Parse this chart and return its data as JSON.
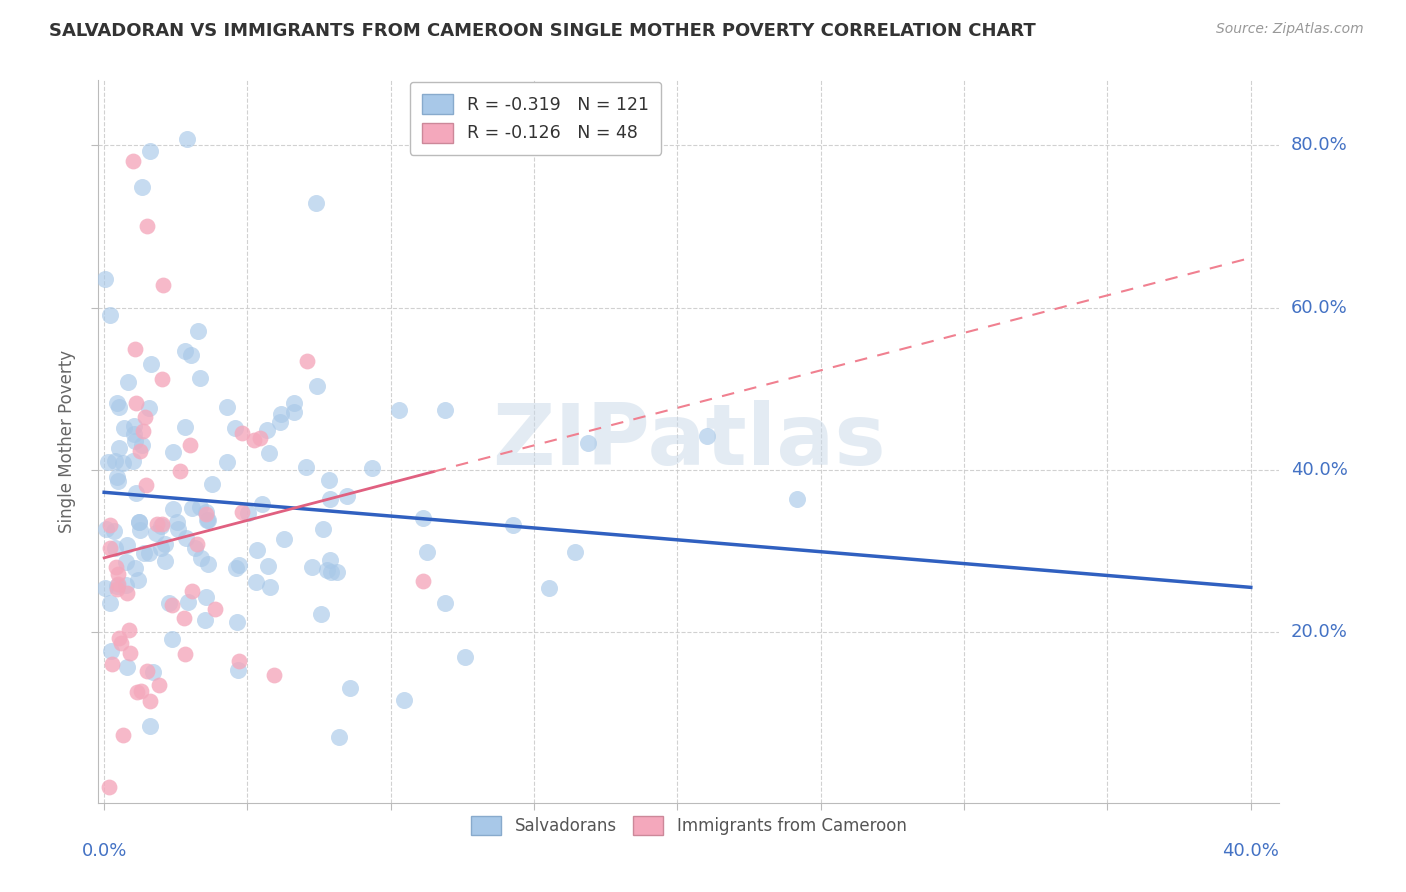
{
  "title": "SALVADORAN VS IMMIGRANTS FROM CAMEROON SINGLE MOTHER POVERTY CORRELATION CHART",
  "source": "Source: ZipAtlas.com",
  "ylabel": "Single Mother Poverty",
  "yticks_labels": [
    "20.0%",
    "40.0%",
    "60.0%",
    "80.0%"
  ],
  "yticks_vals": [
    0.2,
    0.4,
    0.6,
    0.8
  ],
  "xlim": [
    -0.002,
    0.41
  ],
  "ylim": [
    -0.01,
    0.88
  ],
  "sal_color": "#a8c8e8",
  "cam_color": "#f4a8bc",
  "sal_line_color": "#3060c0",
  "cam_solid_line_color": "#e06080",
  "cam_dash_line_color": "#f08090",
  "legend_R_sal": "R = -0.319   N = 121",
  "legend_R_cam": "R = -0.126   N = 48",
  "legend_labels": [
    "Salvadorans",
    "Immigrants from Cameroon"
  ],
  "watermark": "ZIPatlas",
  "bg_color": "#ffffff",
  "grid_color": "#cccccc",
  "axis_label_color": "#4472c4",
  "title_color": "#333333",
  "source_color": "#999999"
}
